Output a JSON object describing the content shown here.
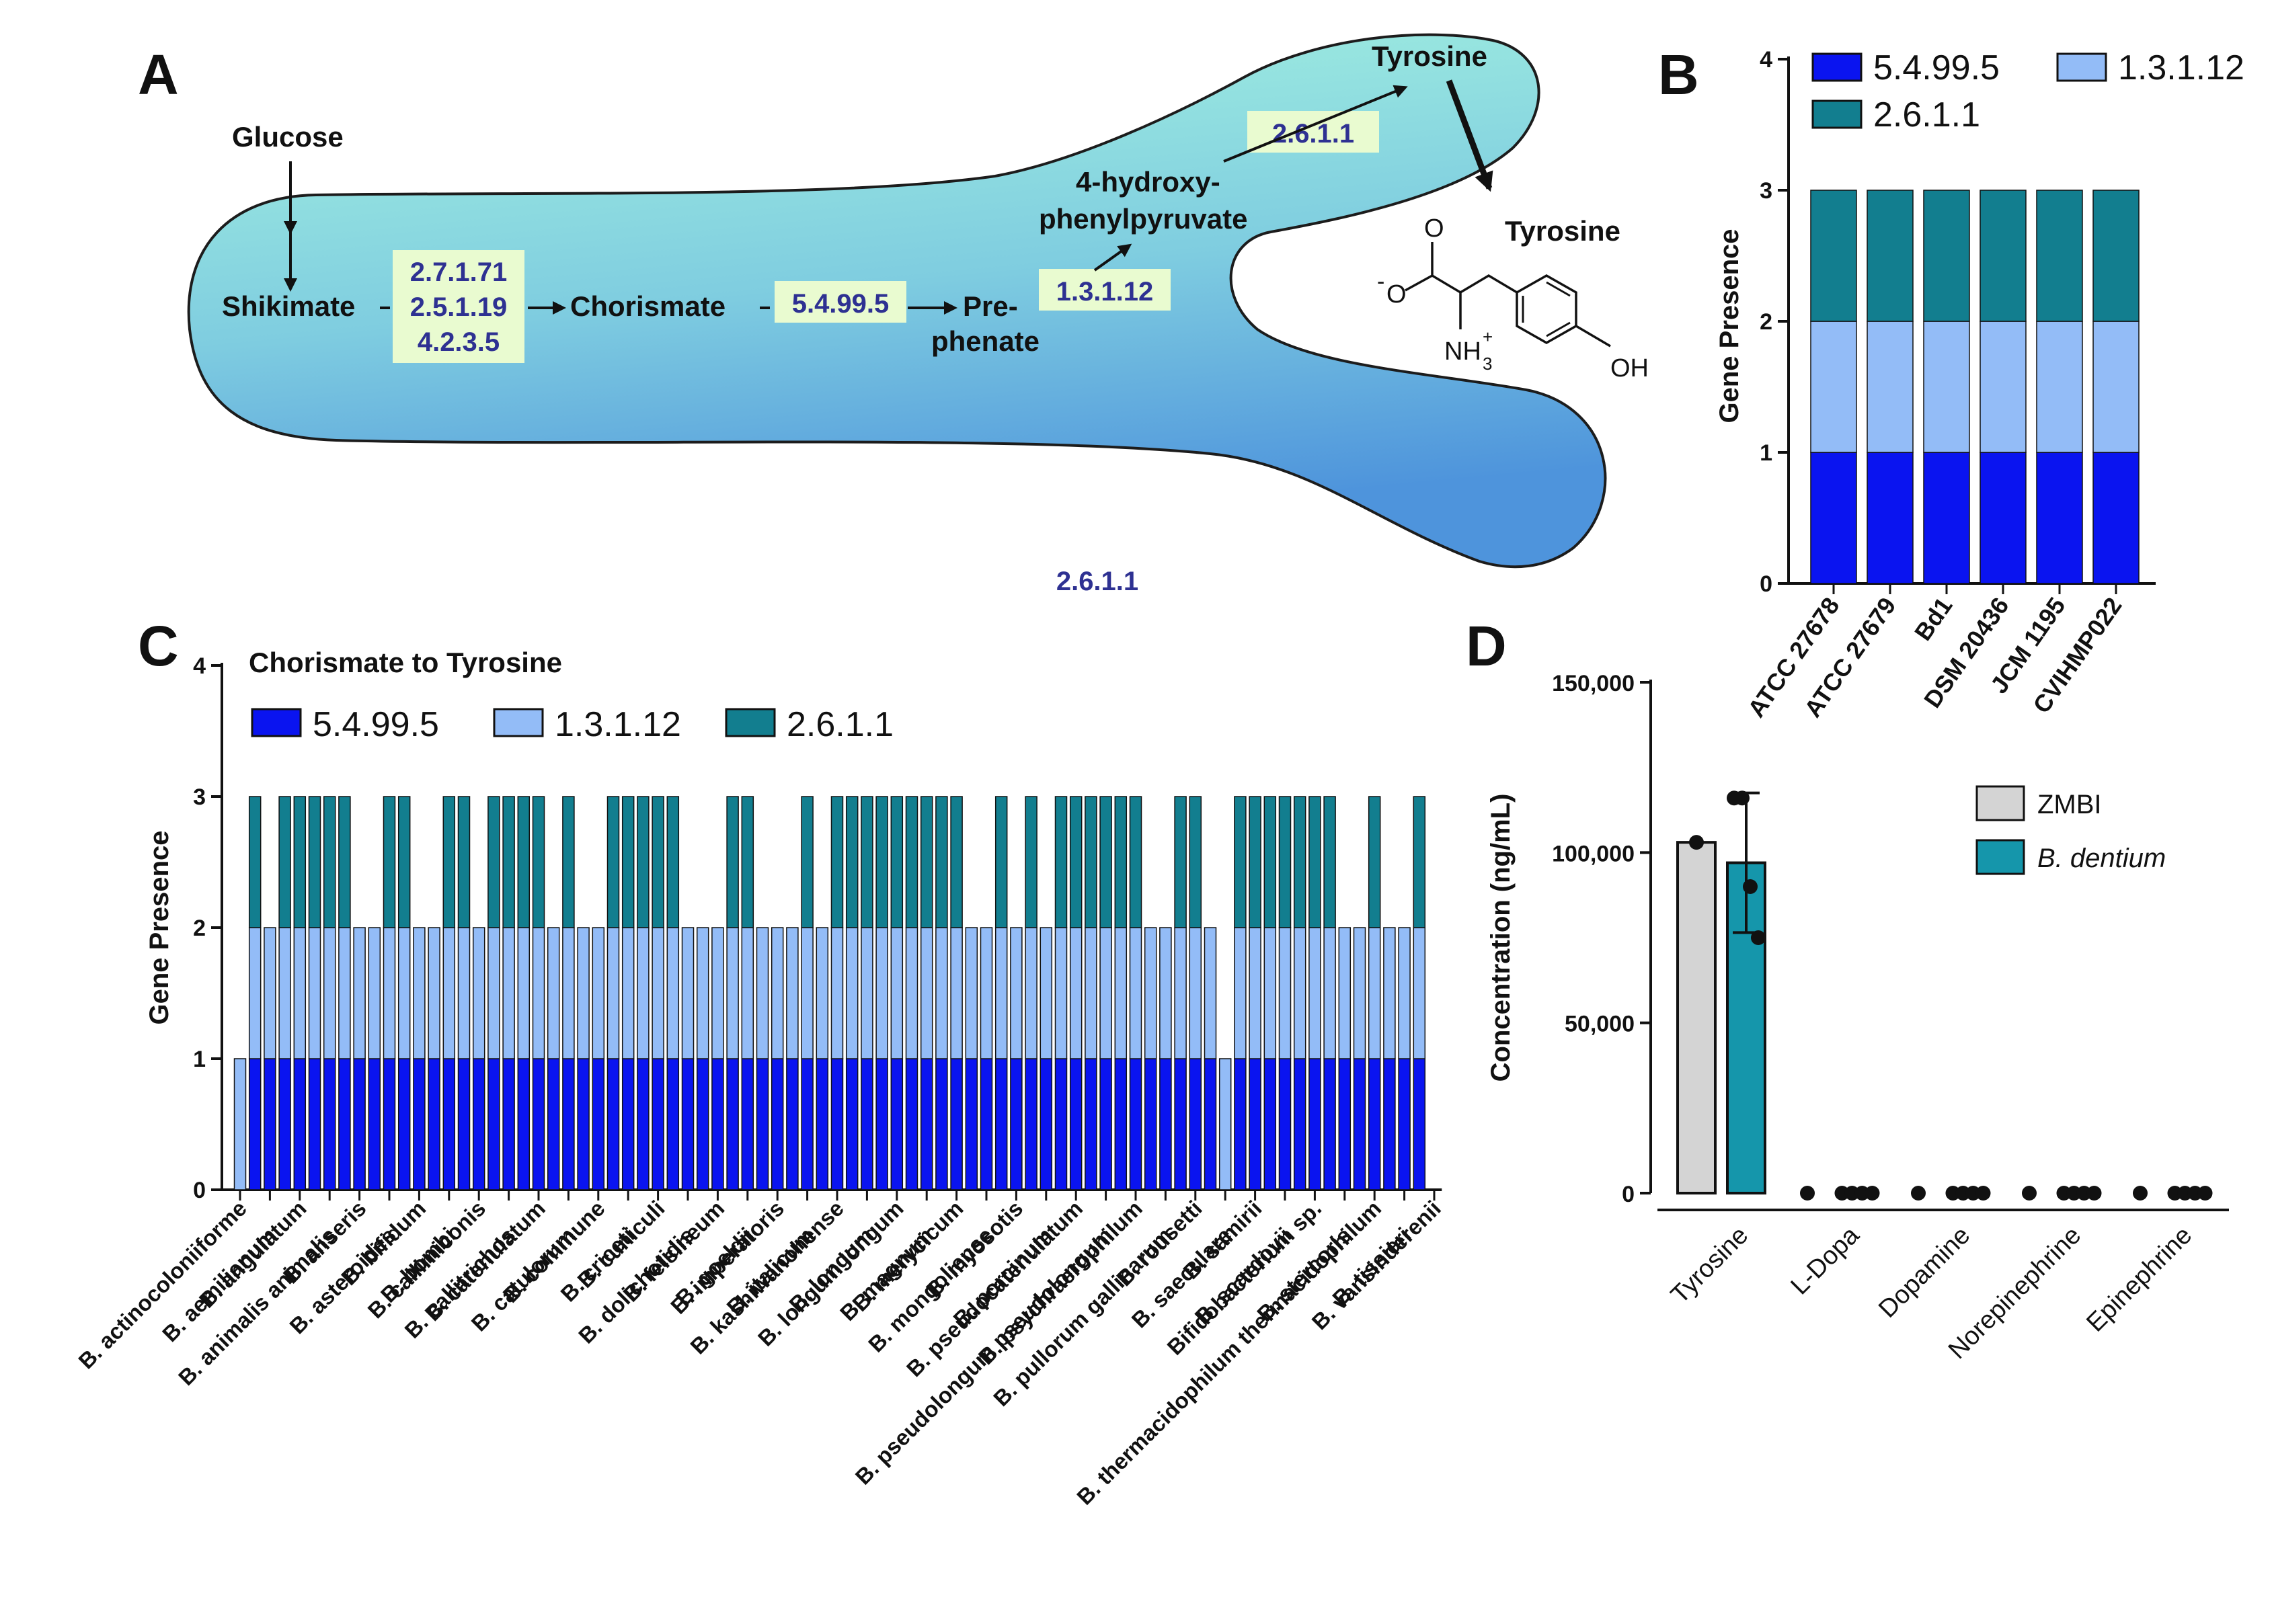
{
  "panels": {
    "a": "A",
    "b": "B",
    "c": "C",
    "d": "D"
  },
  "pathway": {
    "glucose": "Glucose",
    "shikimate": "Shikimate",
    "chorismate": "Chorismate",
    "prephenate_1": "Pre-",
    "prephenate_2": "phenate",
    "hpp_1": "4-hydroxy-",
    "hpp_2": "phenylpyruvate",
    "tyrosine": "Tyrosine",
    "tyrosine_structure_label": "Tyrosine",
    "enzymes_shikimate": [
      "2.7.1.71",
      "2.5.1.19",
      "4.2.3.5"
    ],
    "enzyme_chorismate": "5.4.99.5",
    "enzyme_prephenate": "1.3.1.12",
    "enzyme_hpp": "2.6.1.1",
    "enzyme_bottom": "2.6.1.1",
    "structure": {
      "o": "O",
      "o_minus": "O",
      "minus": "-",
      "nh3": "NH",
      "nh3_sub": "3",
      "nh3_sup": "+",
      "oh": "OH"
    }
  },
  "colors": {
    "dark_blue": "#0a14f0",
    "light_blue": "#93bcf7",
    "teal": "#127e8f",
    "zmbi": "#d4d4d4",
    "dentium": "#1596ab",
    "enzyme_box": "#e9fbd0",
    "enzyme_text": "#2e3192"
  },
  "chart_data": [
    {
      "panel": "B",
      "type": "bar",
      "stacked": true,
      "categories": [
        "ATCC 27678",
        "ATCC 27679",
        "Bd1",
        "DSM 20436",
        "JCM 1195",
        "CVIHMP022"
      ],
      "series": [
        {
          "name": "5.4.99.5",
          "values": [
            1,
            1,
            1,
            1,
            1,
            1
          ]
        },
        {
          "name": "1.3.1.12",
          "values": [
            1,
            1,
            1,
            1,
            1,
            1
          ]
        },
        {
          "name": "2.6.1.1",
          "values": [
            1,
            1,
            1,
            1,
            1,
            1
          ]
        }
      ],
      "ylabel": "Gene Presence",
      "ylim": [
        0,
        4
      ],
      "yticks": [
        "0",
        "1",
        "2",
        "3",
        "4"
      ],
      "legend": [
        "5.4.99.5",
        "1.3.1.12",
        "2.6.1.1"
      ]
    },
    {
      "panel": "C",
      "type": "bar",
      "stacked": true,
      "title": "Chorismate to Tyrosine",
      "n_bars": 80,
      "series": [
        {
          "name": "5.4.99.5",
          "values": [
            0,
            1,
            1,
            1,
            1,
            1,
            1,
            1,
            1,
            1,
            1,
            1,
            1,
            1,
            1,
            1,
            1,
            1,
            1,
            1,
            1,
            1,
            1,
            1,
            1,
            1,
            1,
            1,
            1,
            1,
            1,
            1,
            1,
            1,
            1,
            1,
            1,
            1,
            1,
            1,
            1,
            1,
            1,
            1,
            1,
            1,
            1,
            1,
            1,
            1,
            1,
            1,
            1,
            1,
            1,
            1,
            1,
            1,
            1,
            1,
            1,
            1,
            1,
            1,
            1,
            1,
            0,
            1,
            1,
            1,
            1,
            1,
            1,
            1,
            1,
            1,
            1,
            1,
            1,
            1
          ]
        },
        {
          "name": "1.3.1.12",
          "values": [
            1,
            1,
            1,
            1,
            1,
            1,
            1,
            1,
            1,
            1,
            1,
            1,
            1,
            1,
            1,
            1,
            1,
            1,
            1,
            1,
            1,
            1,
            1,
            1,
            1,
            1,
            1,
            1,
            1,
            1,
            1,
            1,
            1,
            1,
            1,
            1,
            1,
            1,
            1,
            1,
            1,
            1,
            1,
            1,
            1,
            1,
            1,
            1,
            1,
            1,
            1,
            1,
            1,
            1,
            1,
            1,
            1,
            1,
            1,
            1,
            1,
            1,
            1,
            1,
            1,
            1,
            1,
            1,
            1,
            1,
            1,
            1,
            1,
            1,
            1,
            1,
            1,
            1,
            1,
            1
          ]
        },
        {
          "name": "2.6.1.1",
          "values": [
            0,
            1,
            0,
            1,
            1,
            1,
            1,
            1,
            0,
            0,
            1,
            1,
            0,
            0,
            1,
            1,
            0,
            1,
            1,
            1,
            1,
            0,
            1,
            0,
            0,
            1,
            1,
            1,
            1,
            1,
            0,
            0,
            0,
            1,
            1,
            0,
            0,
            0,
            1,
            0,
            1,
            1,
            1,
            1,
            1,
            1,
            1,
            1,
            1,
            0,
            0,
            1,
            0,
            1,
            0,
            1,
            1,
            1,
            1,
            1,
            1,
            0,
            0,
            1,
            1,
            0,
            0,
            1,
            1,
            1,
            1,
            1,
            1,
            1,
            0,
            0,
            1,
            0,
            0,
            1
          ]
        }
      ],
      "xlabels": [
        "B. actinocoloniiforme",
        "B. aemilianum",
        "B. angulatum",
        "B. animalis animalis",
        "B. anseris",
        "B. asteroides",
        "B. bifidum",
        "B. bombi",
        "B. callimiconis",
        "B. callitrichos",
        "B. catenulatum",
        "B. catulorum",
        "B. commune",
        "B. criceti",
        "B. cuniculi",
        "B. dolichotidis",
        "B. felsineum",
        "B. goeldii",
        "B. imperatoris",
        "B. italicum",
        "B. kashiwanohense",
        "B. longum",
        "B. longum longum",
        "B. magnum",
        "B. merycicum",
        "B. mongoliense",
        "B. myosotis",
        "B. porcinum",
        "B. pseudocatenulatum",
        "B. pseudolongum pseudolongum",
        "B. psychraerophilum",
        "B. pullorum gallinarum",
        "B. rousetti",
        "B. saeculare",
        "B. samirii",
        "B. scardovii",
        "Bifidobacterium sp.",
        "B. stercoris",
        "B. thermacidophilum thermacidophilum",
        "B. tissieri",
        "B. vansinderenii"
      ],
      "ylabel": "Gene Presence",
      "ylim": [
        0,
        4
      ],
      "yticks": [
        "0",
        "1",
        "2",
        "3",
        "4"
      ],
      "legend": [
        "5.4.99.5",
        "1.3.1.12",
        "2.6.1.1"
      ]
    },
    {
      "panel": "D",
      "type": "bar",
      "categories": [
        "Tyrosine",
        "L-Dopa",
        "Dopamine",
        "Norepinephrine",
        "Epinephrine"
      ],
      "series": [
        {
          "name": "ZMBI",
          "values": [
            103000,
            0,
            0,
            0,
            0
          ],
          "points": [
            [
              103000
            ],
            [
              0
            ],
            [
              0
            ],
            [
              0
            ],
            [
              0
            ]
          ]
        },
        {
          "name": "B. dentium",
          "values": [
            97000,
            0,
            0,
            0,
            0
          ],
          "error": [
            20500,
            0,
            0,
            0,
            0
          ],
          "points": [
            [
              116000,
              116000,
              90000,
              75000
            ],
            [
              0,
              0,
              0,
              0
            ],
            [
              0,
              0,
              0,
              0
            ],
            [
              0,
              0,
              0,
              0
            ],
            [
              0,
              0,
              0,
              0
            ]
          ]
        }
      ],
      "ylabel": "Concentration (ng/mL)",
      "ylim": [
        0,
        150000
      ],
      "yticks": [
        "0",
        "50,000",
        "100,000",
        "150,000"
      ],
      "legend": [
        "ZMBI",
        "B. dentium"
      ]
    }
  ]
}
